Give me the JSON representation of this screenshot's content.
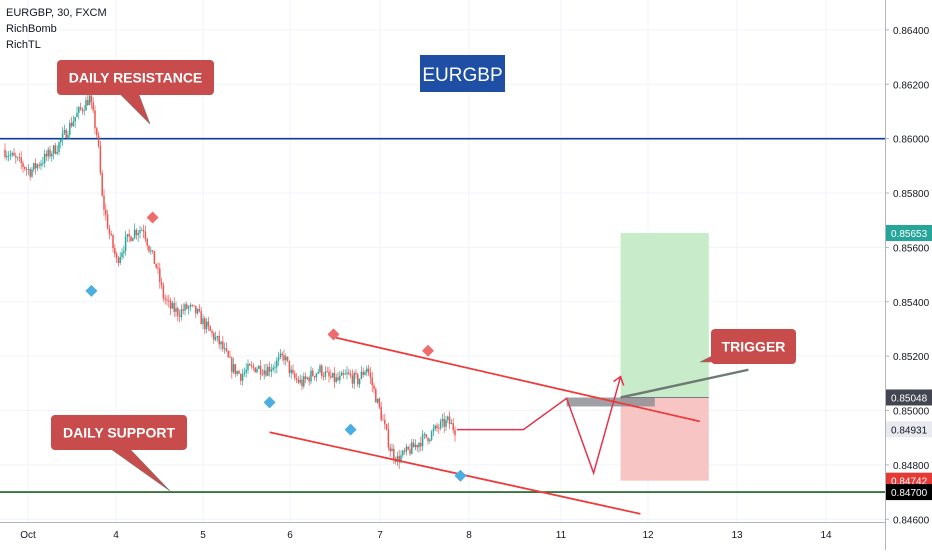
{
  "legend": {
    "symbol_line": "EURGBP, 30, FXCM",
    "indicators": [
      "RichBomb",
      "RichTL"
    ]
  },
  "annotations": {
    "badge": "EURGBP",
    "daily_resistance": "DAILY RESISTANCE",
    "daily_support": "DAILY SUPPORT",
    "trigger": "TRIGGER"
  },
  "colors": {
    "resistance_line": "#0d3a9c",
    "support_line": "#1b5e20",
    "candle_up": "#26a69a",
    "candle_down": "#ef5350",
    "callout": "#c94c4c",
    "badge": "#1e4fa5",
    "channel": "#ee3b3b",
    "target_zone": "#c8ebc9",
    "stop_zone": "#f8c5c5",
    "current_price_tag": "#e8eaf0",
    "top_marker": "#f06b6b",
    "bottom_marker": "#4aaee0"
  },
  "chart_data": {
    "type": "candlestick",
    "symbol": "EURGBP",
    "timeframe": "30",
    "source": "FXCM",
    "x_labels": [
      "Oct",
      "4",
      "5",
      "6",
      "7",
      "8",
      "11",
      "12",
      "13",
      "14"
    ],
    "y_ticks": [
      "0.86400",
      "0.86200",
      "0.86000",
      "0.85800",
      "0.85600",
      "0.85400",
      "0.85200",
      "0.85000",
      "0.84800",
      "0.84600"
    ],
    "ylim": [
      0.8459,
      0.8651
    ],
    "price_series": [
      [
        0,
        0.8596
      ],
      [
        3,
        0.8588
      ],
      [
        6,
        0.8597
      ],
      [
        8,
        0.8608
      ],
      [
        9.6,
        0.8615
      ],
      [
        10.5,
        0.86
      ],
      [
        11,
        0.8578
      ],
      [
        11.8,
        0.8565
      ],
      [
        12.6,
        0.8555
      ],
      [
        13.6,
        0.8562
      ],
      [
        14.6,
        0.8566
      ],
      [
        15.6,
        0.8567
      ],
      [
        16.2,
        0.856
      ],
      [
        17,
        0.8553
      ],
      [
        17.8,
        0.8542
      ],
      [
        18.5,
        0.8538
      ],
      [
        19.5,
        0.8536
      ],
      [
        20.5,
        0.8538
      ],
      [
        21.5,
        0.8536
      ],
      [
        22.3,
        0.8532
      ],
      [
        23.2,
        0.8528
      ],
      [
        24.2,
        0.8524
      ],
      [
        25.4,
        0.8516
      ],
      [
        26.4,
        0.8513
      ],
      [
        27.2,
        0.8515
      ],
      [
        28.2,
        0.8516
      ],
      [
        29.2,
        0.8515
      ],
      [
        30.2,
        0.8517
      ],
      [
        31.2,
        0.852
      ],
      [
        32.2,
        0.8512
      ],
      [
        33.2,
        0.851
      ],
      [
        34.2,
        0.8513
      ],
      [
        35.2,
        0.8515
      ],
      [
        36.2,
        0.8512
      ],
      [
        37.2,
        0.8511
      ],
      [
        38.2,
        0.8513
      ],
      [
        39.4,
        0.8511
      ],
      [
        40.4,
        0.8516
      ],
      [
        41.4,
        0.8505
      ],
      [
        42.2,
        0.8496
      ],
      [
        43,
        0.8486
      ],
      [
        43.8,
        0.8482
      ],
      [
        44.6,
        0.8484
      ],
      [
        45.4,
        0.8486
      ],
      [
        46.4,
        0.8489
      ],
      [
        47.4,
        0.8491
      ],
      [
        48.4,
        0.8494
      ],
      [
        49.4,
        0.8496
      ],
      [
        50.2,
        0.8493
      ]
    ],
    "levels": [
      {
        "name": "daily resistance",
        "price": 0.86,
        "label": "0.86000",
        "color": "#0d3a9c"
      },
      {
        "name": "daily support",
        "price": 0.847,
        "label": "0.84700",
        "color": "#1b5e20"
      }
    ],
    "price_tags": [
      {
        "label": "0.85653",
        "price": 0.85653,
        "bg": "#26a69a",
        "fg": "#ffffff"
      },
      {
        "label": "0.85048",
        "price": 0.85048,
        "bg": "#434651",
        "fg": "#ffffff"
      },
      {
        "label": "0.84931",
        "price": 0.84931,
        "bg": "#e8eaf0",
        "fg": "#131722"
      },
      {
        "label": "0.84742",
        "price": 0.84742,
        "bg": "#e53935",
        "fg": "#ffffff"
      },
      {
        "label": "0.84700",
        "price": 0.847,
        "bg": "#000000",
        "fg": "#ffffff"
      }
    ],
    "top_markers": [
      [
        10,
        0.8623
      ],
      [
        16.4,
        0.8571
      ],
      [
        36.5,
        0.8528
      ],
      [
        47,
        0.8522
      ]
    ],
    "bottom_markers": [
      [
        9.6,
        0.8544
      ],
      [
        29.4,
        0.8503
      ],
      [
        38.4,
        0.8493
      ],
      [
        50.6,
        0.8476
      ]
    ],
    "channel_upper": [
      [
        36.5,
        0.8527
      ],
      [
        77.2,
        0.8496
      ]
    ],
    "channel_lower": [
      [
        29.4,
        0.8492
      ],
      [
        70.6,
        0.8462
      ]
    ],
    "projection_path": [
      [
        57.6,
        0.8493
      ],
      [
        62.4,
        0.85045
      ],
      [
        65.4,
        0.8477
      ],
      [
        68.4,
        0.85125
      ]
    ],
    "trigger_line": [
      [
        68.4,
        0.85048
      ],
      [
        82.6,
        0.8515
      ]
    ],
    "trigger_zone": {
      "x0": 62.4,
      "x1": 72.2,
      "top": 0.85048,
      "bottom": 0.8502
    },
    "target_zone": {
      "x0": 68.4,
      "x1": 78.2,
      "top": 0.85653,
      "bottom": 0.85048
    },
    "stop_zone": {
      "x0": 68.4,
      "x1": 78.2,
      "top": 0.85048,
      "bottom": 0.84742
    }
  }
}
